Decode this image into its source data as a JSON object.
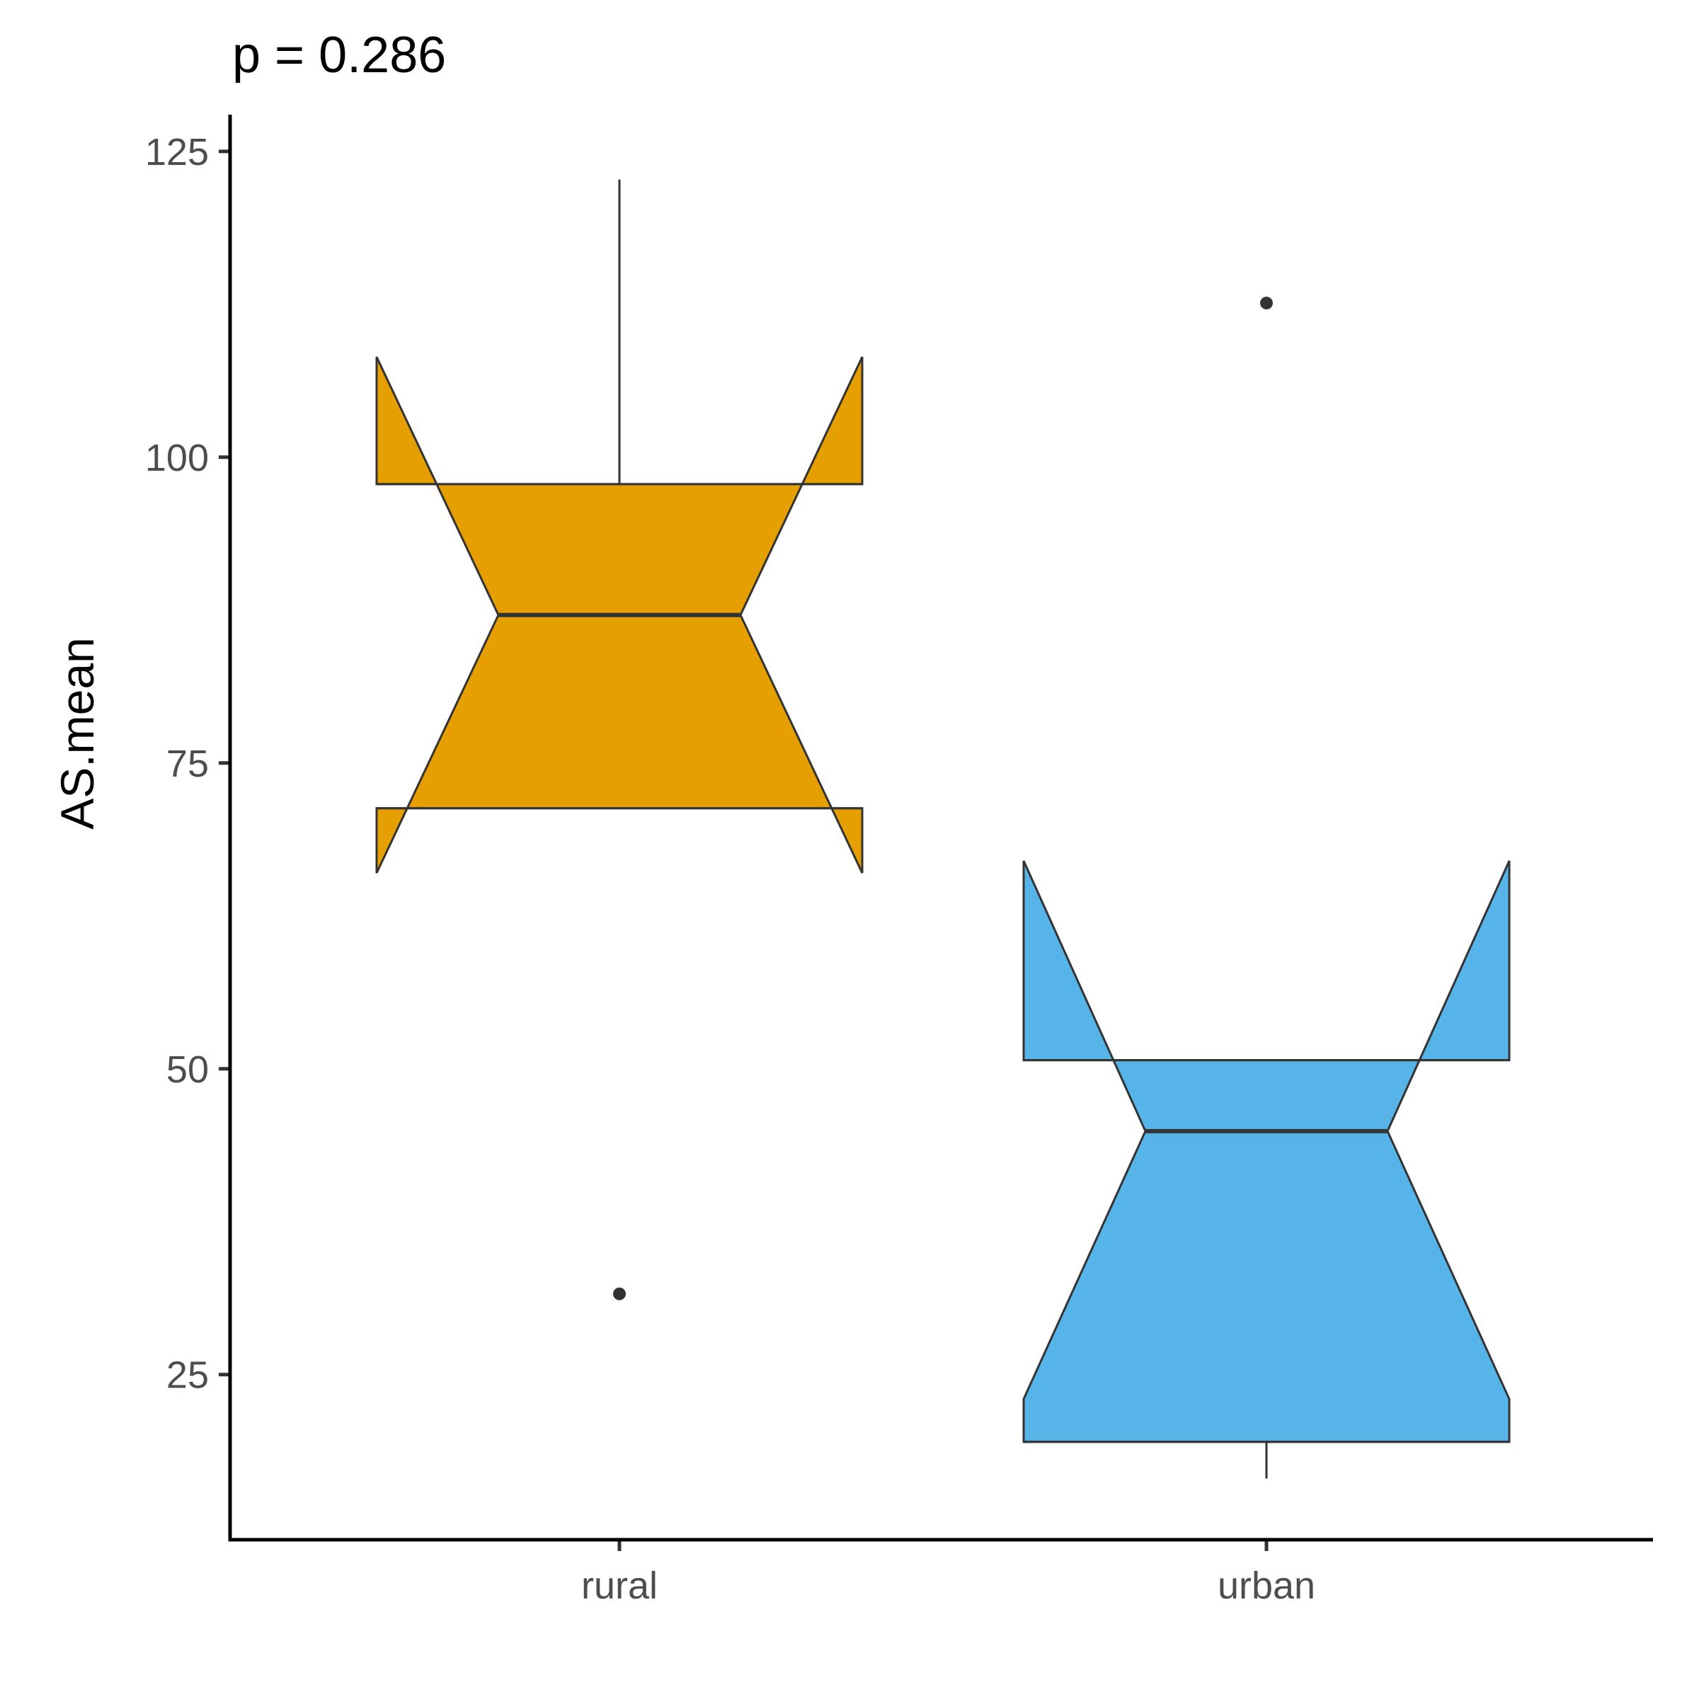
{
  "chart_data": {
    "type": "box",
    "notched": true,
    "annotation": "p = 0.286",
    "title": "",
    "xlabel": "",
    "ylabel": "AS.mean",
    "ylim": [
      11.5,
      128
    ],
    "yticks": [
      25,
      50,
      75,
      100,
      125
    ],
    "grid": false,
    "legend": "none",
    "categories": [
      "rural",
      "urban"
    ],
    "boxes": [
      {
        "category": "rural",
        "color": "#E69F00",
        "whisker_low": 71.3,
        "q1": 71.3,
        "median": 87.1,
        "q3": 97.8,
        "whisker_high": 122.7,
        "notch_low": 66.0,
        "notch_high": 108.2,
        "outliers": [
          31.6
        ]
      },
      {
        "category": "urban",
        "color": "#56B4E9",
        "whisker_low": 16.5,
        "q1": 19.5,
        "median": 44.9,
        "q3": 50.7,
        "whisker_high": 50.7,
        "notch_low": 23.0,
        "notch_high": 67.0,
        "outliers": [
          112.6
        ]
      }
    ],
    "colors": {
      "outline": "#333333",
      "axis": "#000000",
      "tick_text": "#4d4d4d"
    }
  }
}
